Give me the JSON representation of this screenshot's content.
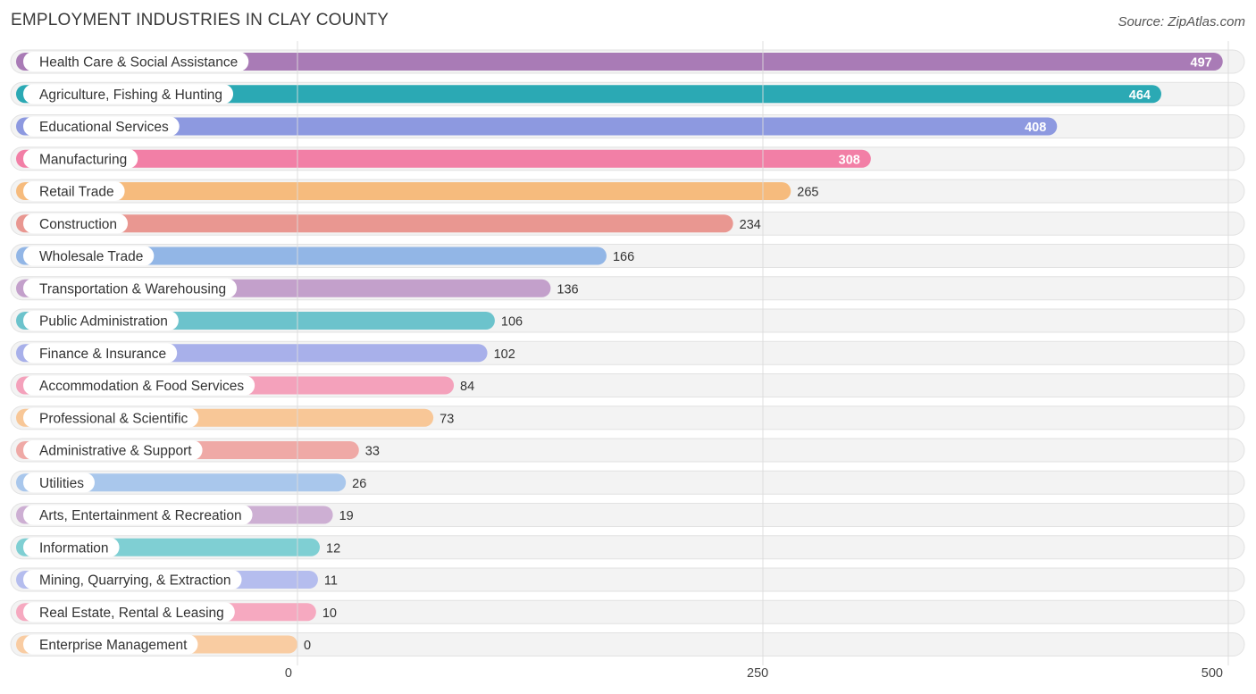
{
  "title": "EMPLOYMENT INDUSTRIES IN CLAY COUNTY",
  "source": "Source: ZipAtlas.com",
  "chart_data": {
    "type": "bar",
    "orientation": "horizontal",
    "title": "EMPLOYMENT INDUSTRIES IN CLAY COUNTY",
    "xlabel": "",
    "ylabel": "",
    "xlim": [
      0,
      500
    ],
    "xticks": [
      0,
      250,
      500
    ],
    "grid": true,
    "categories": [
      "Health Care & Social Assistance",
      "Agriculture, Fishing & Hunting",
      "Educational Services",
      "Manufacturing",
      "Retail Trade",
      "Construction",
      "Wholesale Trade",
      "Transportation & Warehousing",
      "Public Administration",
      "Finance & Insurance",
      "Accommodation & Food Services",
      "Professional & Scientific",
      "Administrative & Support",
      "Utilities",
      "Arts, Entertainment & Recreation",
      "Information",
      "Mining, Quarrying, & Extraction",
      "Real Estate, Rental & Leasing",
      "Enterprise Management"
    ],
    "values": [
      497,
      464,
      408,
      308,
      265,
      234,
      166,
      136,
      106,
      102,
      84,
      73,
      33,
      26,
      19,
      12,
      11,
      10,
      0
    ],
    "colors": [
      "#a97bb6",
      "#2ba9b4",
      "#8d99e0",
      "#f27fa6",
      "#f6bb7d",
      "#e99791",
      "#92b6e6",
      "#c3a0cb",
      "#6cc3cc",
      "#a8b0ea",
      "#f4a1bb",
      "#f8c797",
      "#efa9a6",
      "#a9c7ec",
      "#cdafd3",
      "#7fcfd3",
      "#b5bdee",
      "#f6a9c0",
      "#f9cca2"
    ]
  }
}
